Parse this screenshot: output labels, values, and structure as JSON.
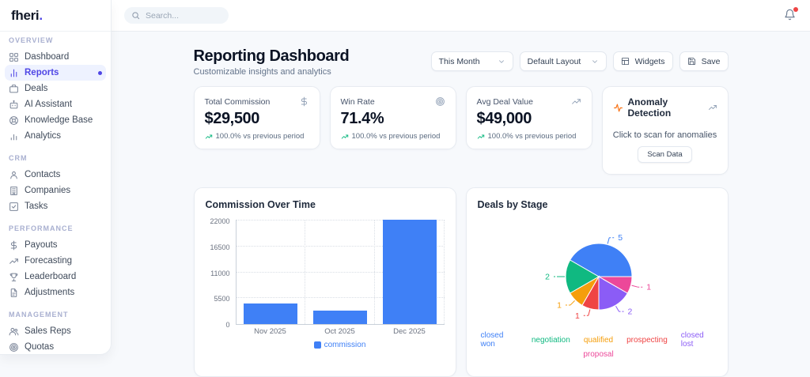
{
  "brand": {
    "name": "fheri",
    "dot": "."
  },
  "topbar": {
    "search_placeholder": "Search...",
    "has_notification": true
  },
  "sidebar": {
    "sections": [
      {
        "label": "OVERVIEW",
        "items": [
          {
            "label": "Dashboard",
            "icon": "dashboard-icon"
          },
          {
            "label": "Reports",
            "icon": "reports-icon",
            "active": true
          },
          {
            "label": "Deals",
            "icon": "deals-icon"
          },
          {
            "label": "AI Assistant",
            "icon": "ai-assistant-icon"
          },
          {
            "label": "Knowledge Base",
            "icon": "knowledge-base-icon"
          },
          {
            "label": "Analytics",
            "icon": "analytics-icon"
          }
        ]
      },
      {
        "label": "CRM",
        "items": [
          {
            "label": "Contacts",
            "icon": "contacts-icon"
          },
          {
            "label": "Companies",
            "icon": "companies-icon"
          },
          {
            "label": "Tasks",
            "icon": "tasks-icon"
          }
        ]
      },
      {
        "label": "PERFORMANCE",
        "items": [
          {
            "label": "Payouts",
            "icon": "payouts-icon"
          },
          {
            "label": "Forecasting",
            "icon": "forecasting-icon"
          },
          {
            "label": "Leaderboard",
            "icon": "leaderboard-icon"
          },
          {
            "label": "Adjustments",
            "icon": "adjustments-icon"
          }
        ]
      },
      {
        "label": "MANAGEMENT",
        "items": [
          {
            "label": "Sales Reps",
            "icon": "sales-reps-icon"
          },
          {
            "label": "Quotas",
            "icon": "quotas-icon"
          }
        ]
      }
    ]
  },
  "page": {
    "title": "Reporting Dashboard",
    "subtitle": "Customizable insights and analytics"
  },
  "controls": {
    "period_select": "This Month",
    "layout_select": "Default Layout",
    "widgets_button": "Widgets",
    "save_button": "Save"
  },
  "kpis": [
    {
      "label": "Total Commission",
      "value": "$29,500",
      "icon": "dollar-icon",
      "trend_text": "100.0% vs previous period",
      "trend_direction": "up"
    },
    {
      "label": "Win Rate",
      "value": "71.4%",
      "icon": "target-icon",
      "trend_text": "100.0% vs previous period",
      "trend_direction": "up"
    },
    {
      "label": "Avg Deal Value",
      "value": "$49,000",
      "icon": "trending-up-icon",
      "trend_text": "100.0% vs previous period",
      "trend_direction": "up"
    }
  ],
  "anomaly_card": {
    "title": "Anomaly Detection",
    "message": "Click to scan for anomalies",
    "button_label": "Scan Data"
  },
  "chart_data": [
    {
      "type": "bar",
      "title": "Commission Over Time",
      "categories": [
        "Nov 2025",
        "Oct 2025",
        "Dec 2025"
      ],
      "series": [
        {
          "name": "commission",
          "values": [
            4400,
            2900,
            22200
          ]
        }
      ],
      "yticks": [
        0,
        5500,
        11000,
        16500,
        22000
      ],
      "ylim": [
        0,
        22400
      ],
      "grid": true,
      "legend_position": "bottom",
      "bar_color": "#3f80f6"
    },
    {
      "type": "pie",
      "title": "Deals by Stage",
      "labels": [
        "closed won",
        "negotiation",
        "qualified",
        "prospecting",
        "closed lost",
        "proposal"
      ],
      "values": [
        5,
        2,
        1,
        1,
        2,
        1
      ],
      "colors": [
        "#3f80f6",
        "#10b981",
        "#f59e0b",
        "#ef4444",
        "#8b5cf6",
        "#ec4899"
      ],
      "start_angle": 0,
      "direction": "counterclockwise",
      "data_labels": true,
      "legend_position": "bottom"
    }
  ],
  "colors": {
    "accent": "#4f46e5",
    "bar_blue": "#3f80f6",
    "trend_green": "#10b981",
    "anomaly_orange": "#f97316",
    "badge_red": "#ef4444"
  }
}
